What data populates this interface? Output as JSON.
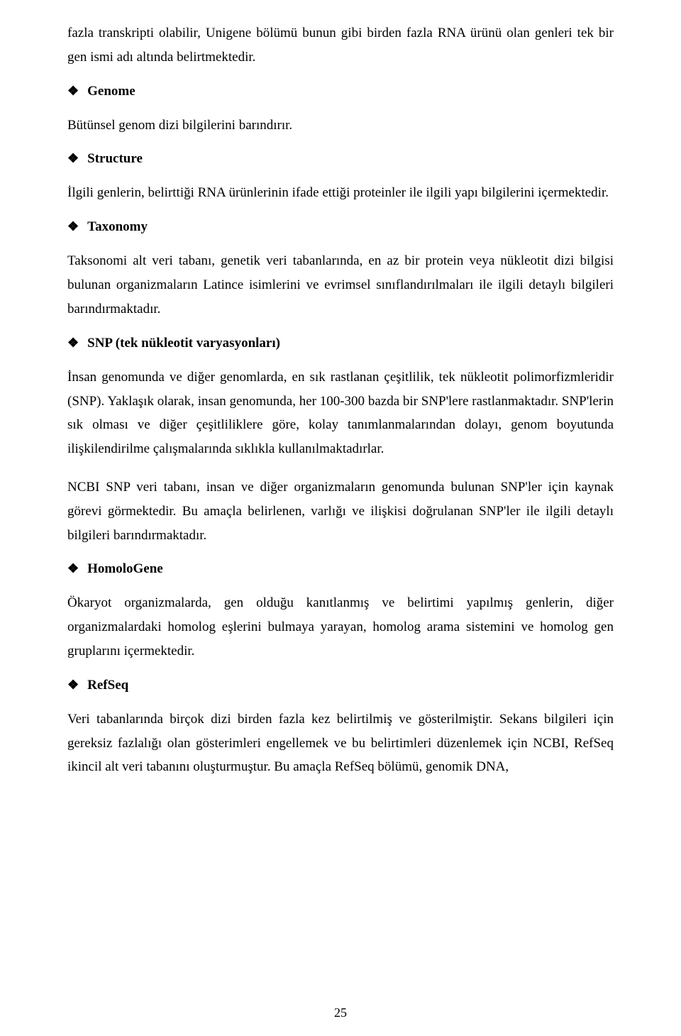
{
  "paragraphs": {
    "p1": "fazla transkripti olabilir, Unigene bölümü bunun gibi birden fazla RNA ürünü olan genleri tek bir gen ismi adı altında belirtmektedir.",
    "p2": "Bütünsel genom dizi bilgilerini barındırır.",
    "p3": "İlgili genlerin, belirttiği RNA ürünlerinin ifade ettiği proteinler ile ilgili yapı bilgilerini içermektedir.",
    "p4": "Taksonomi alt veri tabanı, genetik veri tabanlarında, en az bir protein veya nükleotit dizi bilgisi bulunan organizmaların Latince isimlerini ve evrimsel sınıflandırılmaları ile ilgili detaylı bilgileri barındırmaktadır.",
    "p5": "İnsan genomunda ve diğer genomlarda, en sık rastlanan çeşitlilik,  tek nükleotit polimorfizmleridir (SNP). Yaklaşık olarak, insan genomunda, her 100-300 bazda bir SNP'lere rastlanmaktadır. SNP'lerin sık olması ve diğer çeşitliliklere göre, kolay tanımlanmalarından dolayı, genom boyutunda ilişkilendirilme çalışmalarında sıklıkla kullanılmaktadırlar.",
    "p6": "NCBI SNP veri tabanı, insan ve diğer organizmaların genomunda bulunan SNP'ler için kaynak görevi görmektedir. Bu amaçla belirlenen, varlığı ve ilişkisi doğrulanan SNP'ler ile ilgili detaylı bilgileri barındırmaktadır.",
    "p7": "Ökaryot organizmalarda, gen olduğu kanıtlanmış ve belirtimi yapılmış genlerin, diğer organizmalardaki homolog eşlerini bulmaya yarayan, homolog arama sistemini ve homolog gen gruplarını içermektedir.",
    "p8": "Veri tabanlarında birçok dizi birden fazla kez belirtilmiş ve gösterilmiştir. Sekans bilgileri için gereksiz fazlalığı olan gösterimleri engellemek ve bu belirtimleri düzenlemek için NCBI, RefSeq ikincil alt veri tabanını oluşturmuştur. Bu amaçla RefSeq bölümü, genomik DNA,"
  },
  "headings": {
    "h1": "Genome",
    "h2": "Structure",
    "h3": "Taxonomy",
    "h4": "SNP (tek nükleotit varyasyonları)",
    "h5": "HomoloGene",
    "h6": "RefSeq"
  },
  "bullet": "❖",
  "pageNumber": "25"
}
